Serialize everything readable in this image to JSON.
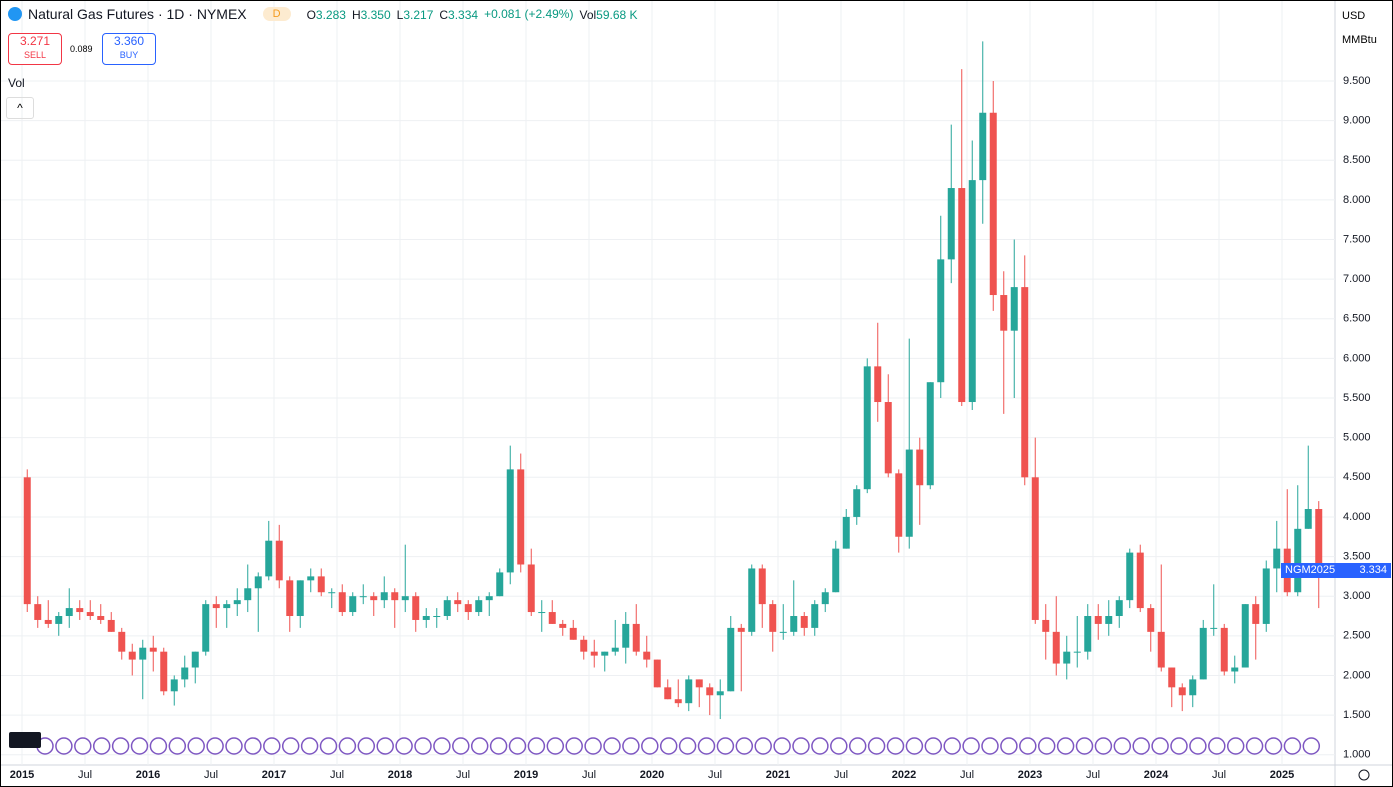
{
  "header": {
    "title": "Natural Gas Futures · 1D · NYMEX",
    "badge": "D",
    "ohlc": [
      {
        "label": "O",
        "value": "3.283"
      },
      {
        "label": "H",
        "value": "3.350"
      },
      {
        "label": "L",
        "value": "3.217"
      },
      {
        "label": "C",
        "value": "3.334"
      }
    ],
    "change": "+0.081 (+2.49%)",
    "vol_label": "Vol",
    "vol": "59.68 K"
  },
  "trade": {
    "sell": "3.271",
    "sell_label": "SELL",
    "spread": "0.089",
    "buy": "3.360",
    "buy_label": "BUY"
  },
  "legend": {
    "vol": "Vol"
  },
  "price_axis": {
    "currency": "USD",
    "unit": "MMBtu",
    "last_symbol": "NGM2025",
    "last_price": "3.334"
  },
  "chart_data": {
    "type": "candlestick",
    "up_color": "#26a69a",
    "down_color": "#ef5350",
    "grid": true,
    "ylim": [
      0.87,
      10.51
    ],
    "yticks": [
      {
        "value": 1,
        "label": "1.000"
      },
      {
        "value": 1.5,
        "label": "1.500"
      },
      {
        "value": 2,
        "label": "2.000"
      },
      {
        "value": 2.5,
        "label": "2.500"
      },
      {
        "value": 3,
        "label": "3.000"
      },
      {
        "value": 3.5,
        "label": "3.500"
      },
      {
        "value": 4,
        "label": "4.000"
      },
      {
        "value": 4.5,
        "label": "4.500"
      },
      {
        "value": 5,
        "label": "5.000"
      },
      {
        "value": 5.5,
        "label": "5.500"
      },
      {
        "value": 6,
        "label": "6.000"
      },
      {
        "value": 6.5,
        "label": "6.500"
      },
      {
        "value": 7,
        "label": "7.000"
      },
      {
        "value": 7.5,
        "label": "7.500"
      },
      {
        "value": 8,
        "label": "8.000"
      },
      {
        "value": 8.5,
        "label": "8.500"
      },
      {
        "value": 9,
        "label": "9.000"
      },
      {
        "value": 9.5,
        "label": "9.500"
      }
    ],
    "xticks": [
      {
        "value": "2015-01",
        "label": "2015"
      },
      {
        "value": "2015-07",
        "label": "Jul"
      },
      {
        "value": "2016-01",
        "label": "2016"
      },
      {
        "value": "2016-07",
        "label": "Jul"
      },
      {
        "value": "2017-01",
        "label": "2017"
      },
      {
        "value": "2017-07",
        "label": "Jul"
      },
      {
        "value": "2018-01",
        "label": "2018"
      },
      {
        "value": "2018-07",
        "label": "Jul"
      },
      {
        "value": "2019-01",
        "label": "2019"
      },
      {
        "value": "2019-07",
        "label": "Jul"
      },
      {
        "value": "2020-01",
        "label": "2020"
      },
      {
        "value": "2020-07",
        "label": "Jul"
      },
      {
        "value": "2021-01",
        "label": "2021"
      },
      {
        "value": "2021-07",
        "label": "Jul"
      },
      {
        "value": "2022-01",
        "label": "2022"
      },
      {
        "value": "2022-07",
        "label": "Jul"
      },
      {
        "value": "2023-01",
        "label": "2023"
      },
      {
        "value": "2023-07",
        "label": "Jul"
      },
      {
        "value": "2024-01",
        "label": "2024"
      },
      {
        "value": "2024-07",
        "label": "Jul"
      },
      {
        "value": "2025-01",
        "label": "2025"
      }
    ],
    "x": [
      "2015-01",
      "2015-02",
      "2015-03",
      "2015-04",
      "2015-05",
      "2015-06",
      "2015-07",
      "2015-08",
      "2015-09",
      "2015-10",
      "2015-11",
      "2015-12",
      "2016-01",
      "2016-02",
      "2016-03",
      "2016-04",
      "2016-05",
      "2016-06",
      "2016-07",
      "2016-08",
      "2016-09",
      "2016-10",
      "2016-11",
      "2016-12",
      "2017-01",
      "2017-02",
      "2017-03",
      "2017-04",
      "2017-05",
      "2017-06",
      "2017-07",
      "2017-08",
      "2017-09",
      "2017-10",
      "2017-11",
      "2017-12",
      "2018-01",
      "2018-02",
      "2018-03",
      "2018-04",
      "2018-05",
      "2018-06",
      "2018-07",
      "2018-08",
      "2018-09",
      "2018-10",
      "2018-11",
      "2018-12",
      "2019-01",
      "2019-02",
      "2019-03",
      "2019-04",
      "2019-05",
      "2019-06",
      "2019-07",
      "2019-08",
      "2019-09",
      "2019-10",
      "2019-11",
      "2019-12",
      "2020-01",
      "2020-02",
      "2020-03",
      "2020-04",
      "2020-05",
      "2020-06",
      "2020-07",
      "2020-08",
      "2020-09",
      "2020-10",
      "2020-11",
      "2020-12",
      "2021-01",
      "2021-02",
      "2021-03",
      "2021-04",
      "2021-05",
      "2021-06",
      "2021-07",
      "2021-08",
      "2021-09",
      "2021-10",
      "2021-11",
      "2021-12",
      "2022-01",
      "2022-02",
      "2022-03",
      "2022-04",
      "2022-05",
      "2022-06",
      "2022-07",
      "2022-08",
      "2022-09",
      "2022-10",
      "2022-11",
      "2022-12",
      "2023-01",
      "2023-02",
      "2023-03",
      "2023-04",
      "2023-05",
      "2023-06",
      "2023-07",
      "2023-08",
      "2023-09",
      "2023-10",
      "2023-11",
      "2023-12",
      "2024-01",
      "2024-02",
      "2024-03",
      "2024-04",
      "2024-05",
      "2024-06",
      "2024-07",
      "2024-08",
      "2024-09",
      "2024-10",
      "2024-11",
      "2024-12",
      "2025-01",
      "2025-02",
      "2025-03",
      "2025-04"
    ],
    "open": [
      4.5,
      2.9,
      2.7,
      2.65,
      2.75,
      2.85,
      2.8,
      2.75,
      2.7,
      2.55,
      2.3,
      2.2,
      2.35,
      2.3,
      1.8,
      1.95,
      2.1,
      2.3,
      2.9,
      2.85,
      2.9,
      2.95,
      3.1,
      3.25,
      3.7,
      3.2,
      2.75,
      3.2,
      3.25,
      3.05,
      3.05,
      2.8,
      3.0,
      3.0,
      2.95,
      3.05,
      2.95,
      3.0,
      2.7,
      2.75,
      2.75,
      2.95,
      2.9,
      2.8,
      2.95,
      3.0,
      3.3,
      4.6,
      3.4,
      2.8,
      2.8,
      2.65,
      2.6,
      2.45,
      2.3,
      2.25,
      2.3,
      2.35,
      2.65,
      2.3,
      2.2,
      1.85,
      1.7,
      1.65,
      1.95,
      1.85,
      1.75,
      1.8,
      2.6,
      2.55,
      3.35,
      2.9,
      2.55,
      2.55,
      2.75,
      2.6,
      2.9,
      3.05,
      3.6,
      4.0,
      4.35,
      5.9,
      5.45,
      4.55,
      3.75,
      4.85,
      4.4,
      5.7,
      7.25,
      8.15,
      5.45,
      8.25,
      9.1,
      6.8,
      6.35,
      6.9,
      4.5,
      2.7,
      2.55,
      2.15,
      2.3,
      2.3,
      2.75,
      2.65,
      2.75,
      2.95,
      3.55,
      2.85,
      2.55,
      2.1,
      1.85,
      1.75,
      1.95,
      2.6,
      2.6,
      2.05,
      2.1,
      2.9,
      2.65,
      3.35,
      3.6,
      3.05,
      3.85,
      4.1
    ],
    "high": [
      4.6,
      3.0,
      2.95,
      2.8,
      3.1,
      2.95,
      2.95,
      2.9,
      2.8,
      2.6,
      2.4,
      2.45,
      2.5,
      2.35,
      2.0,
      2.25,
      2.3,
      2.95,
      3.0,
      2.95,
      3.1,
      3.4,
      3.3,
      3.95,
      3.9,
      3.25,
      3.2,
      3.35,
      3.35,
      3.1,
      3.15,
      3.05,
      3.15,
      3.05,
      3.25,
      3.1,
      3.65,
      3.05,
      2.85,
      2.85,
      3.0,
      3.05,
      2.95,
      3.0,
      3.05,
      3.35,
      4.9,
      4.8,
      3.6,
      2.95,
      2.95,
      2.7,
      2.7,
      2.5,
      2.45,
      2.3,
      2.7,
      2.8,
      2.9,
      2.5,
      2.2,
      1.95,
      1.95,
      2.0,
      1.95,
      1.9,
      1.95,
      2.75,
      2.65,
      3.4,
      3.4,
      2.95,
      2.9,
      3.2,
      2.8,
      2.95,
      3.1,
      3.7,
      4.1,
      4.4,
      6.0,
      6.45,
      5.8,
      4.6,
      6.25,
      5.0,
      5.7,
      7.8,
      8.95,
      9.65,
      8.75,
      10.0,
      9.5,
      7.1,
      7.5,
      7.3,
      5.0,
      2.9,
      3.0,
      2.5,
      2.75,
      2.9,
      2.9,
      2.95,
      3.0,
      3.6,
      3.65,
      2.9,
      3.4,
      2.1,
      1.9,
      2.0,
      2.7,
      3.15,
      2.65,
      2.25,
      2.9,
      3.0,
      3.45,
      3.95,
      4.35,
      4.4,
      4.9,
      4.2
    ],
    "low": [
      2.8,
      2.6,
      2.6,
      2.5,
      2.6,
      2.7,
      2.7,
      2.65,
      2.55,
      2.2,
      2.0,
      1.7,
      2.05,
      1.75,
      1.62,
      1.85,
      1.9,
      2.25,
      2.6,
      2.6,
      2.75,
      2.8,
      2.55,
      3.2,
      3.1,
      2.55,
      2.6,
      3.05,
      3.0,
      2.85,
      2.75,
      2.75,
      2.9,
      2.75,
      2.85,
      2.6,
      2.8,
      2.55,
      2.6,
      2.6,
      2.7,
      2.8,
      2.7,
      2.75,
      2.75,
      3.0,
      3.15,
      3.3,
      2.75,
      2.55,
      2.65,
      2.5,
      2.45,
      2.2,
      2.1,
      2.05,
      2.25,
      2.15,
      2.25,
      2.1,
      1.85,
      1.7,
      1.6,
      1.55,
      1.6,
      1.5,
      1.45,
      1.8,
      1.8,
      2.5,
      2.6,
      2.3,
      2.45,
      2.5,
      2.5,
      2.5,
      2.8,
      3.05,
      3.6,
      3.9,
      4.3,
      5.2,
      4.5,
      3.55,
      3.6,
      3.9,
      4.35,
      5.5,
      6.95,
      5.4,
      5.35,
      7.7,
      6.6,
      5.3,
      5.5,
      4.4,
      2.65,
      2.2,
      2.0,
      1.95,
      2.1,
      2.2,
      2.45,
      2.5,
      2.6,
      2.85,
      2.8,
      2.3,
      2.05,
      1.6,
      1.55,
      1.6,
      1.95,
      2.5,
      2.0,
      1.9,
      2.1,
      2.2,
      2.55,
      3.05,
      3.0,
      3.0,
      3.85,
      2.85
    ],
    "close": [
      2.9,
      2.7,
      2.65,
      2.75,
      2.85,
      2.8,
      2.75,
      2.7,
      2.55,
      2.3,
      2.2,
      2.35,
      2.3,
      1.8,
      1.95,
      2.1,
      2.3,
      2.9,
      2.85,
      2.9,
      2.95,
      3.1,
      3.25,
      3.7,
      3.2,
      2.75,
      3.2,
      3.25,
      3.05,
      3.05,
      2.8,
      3.0,
      3.0,
      2.95,
      3.05,
      2.95,
      3.0,
      2.7,
      2.75,
      2.75,
      2.95,
      2.9,
      2.8,
      2.95,
      3.0,
      3.3,
      4.6,
      3.4,
      2.8,
      2.8,
      2.65,
      2.6,
      2.45,
      2.3,
      2.25,
      2.3,
      2.35,
      2.65,
      2.3,
      2.2,
      1.85,
      1.7,
      1.65,
      1.95,
      1.85,
      1.75,
      1.8,
      2.6,
      2.55,
      3.35,
      2.9,
      2.55,
      2.55,
      2.75,
      2.6,
      2.9,
      3.05,
      3.6,
      4.0,
      4.35,
      5.9,
      5.45,
      4.55,
      3.75,
      4.85,
      4.4,
      5.7,
      7.25,
      8.15,
      5.45,
      8.25,
      9.1,
      6.8,
      6.35,
      6.9,
      4.5,
      2.7,
      2.55,
      2.15,
      2.3,
      2.3,
      2.75,
      2.65,
      2.75,
      2.95,
      3.55,
      2.85,
      2.55,
      2.1,
      1.85,
      1.75,
      1.95,
      2.6,
      2.6,
      2.05,
      2.1,
      2.9,
      2.65,
      3.35,
      3.6,
      3.05,
      3.85,
      4.1,
      3.35
    ]
  }
}
